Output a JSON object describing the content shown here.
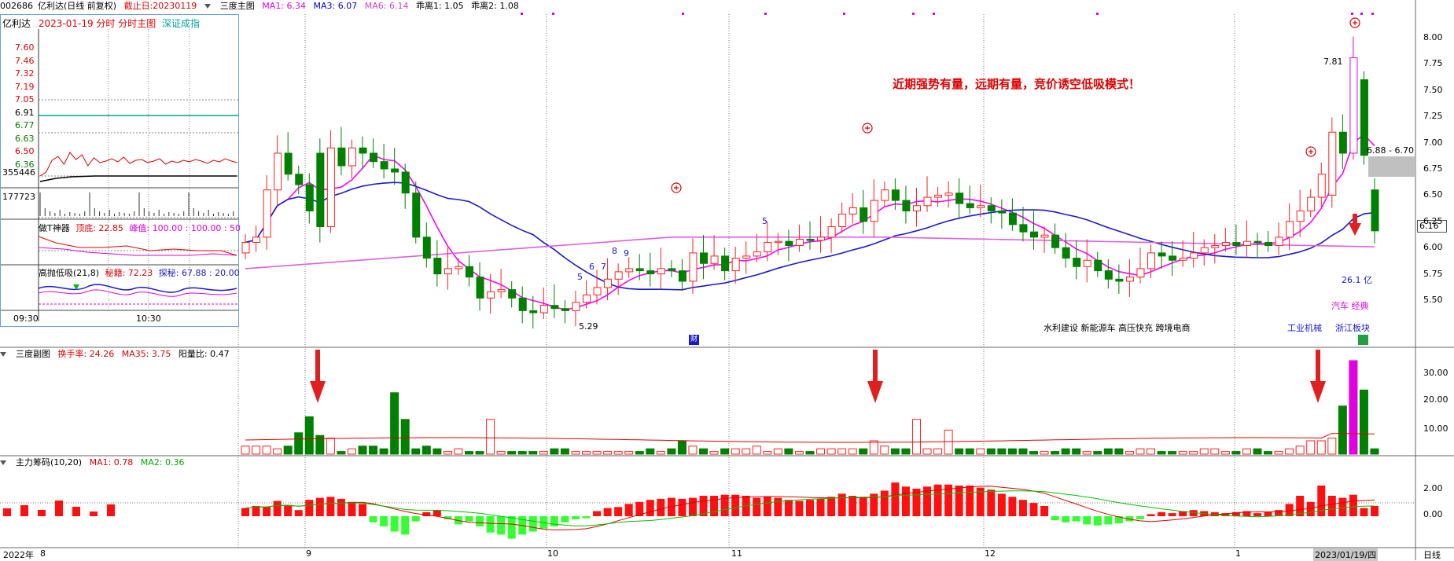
{
  "header": {
    "code": "002686",
    "name": "亿利达(日线 前复权)",
    "cutoff": "截止日:20230119",
    "main_chart": "三度主图",
    "ma1": "MA1: 6.34",
    "ma3": "MA3: 6.07",
    "ma6": "MA6: 6.14",
    "dev1": "乖离1: 1.05",
    "dev2": "乖离2: 1.08"
  },
  "annotation_text": "近期强势有量，远期有量，竞价诱空低吸模式！",
  "price_axis": [
    "8.00",
    "7.75",
    "7.50",
    "7.25",
    "7.00",
    "6.75",
    "6.50",
    "6.25",
    "6.00",
    "5.75",
    "5.50"
  ],
  "current_price": "6.16",
  "high_label": "7.81",
  "low_label": "5.29",
  "range_label": "6.88 - 6.70",
  "amount_label": "26.1 亿",
  "sector_tags": {
    "left": "水利建设 新能源车 高压快充 跨境电商",
    "industry": "工业机械",
    "region": "浙江板块",
    "concept": "汽车 经典"
  },
  "count_labels": [
    "5",
    "6",
    "7",
    "8",
    "9",
    "5"
  ],
  "fin_marker": "财",
  "sub1": {
    "title": "三度副图",
    "turnover": "换手率: 24.26",
    "ma35": "MA35: 3.75",
    "ratio": "阳量比: 0.47",
    "axis": [
      "30.00",
      "20.00",
      "10.00"
    ]
  },
  "sub2": {
    "title": "主力筹码(10,20)",
    "ma1": "MA1: 0.78",
    "ma2": "MA2: 0.36",
    "axis": [
      "2.00",
      "0.00"
    ]
  },
  "date_axis": {
    "year": "2022年",
    "m8": "8",
    "m9": "9",
    "m10": "10",
    "m11": "11",
    "m12": "12",
    "m1": "1",
    "current": "2023/01/19/四",
    "period": "日线"
  },
  "inset": {
    "name": "亿利达",
    "subtitle": "2023-01-19 分时 分时主图",
    "index": "深证成指",
    "price_axis": [
      "7.60",
      "7.46",
      "7.32",
      "7.19",
      "7.05",
      "6.91",
      "6.77",
      "6.63",
      "6.50",
      "6.36"
    ],
    "vol_axis": [
      "355446",
      "177723"
    ],
    "tgod": "做T神器",
    "tgod_top": "顶底: 22.85",
    "tgod_peak": "峰值: 100.00 : 100.00 : 50",
    "hl": "高抛低吸(21,8)",
    "hl_a": "秘籍: 72.23",
    "hl_b": "探秘: 67.88 : 20.00",
    "t1": "09:30",
    "t2": "10:30"
  },
  "colors": {
    "up": "#ff2020",
    "down": "#008000",
    "ma_pink": "#ff00ff",
    "ma_blue": "#1a1acc",
    "ma_violet": "#e060e0"
  }
}
